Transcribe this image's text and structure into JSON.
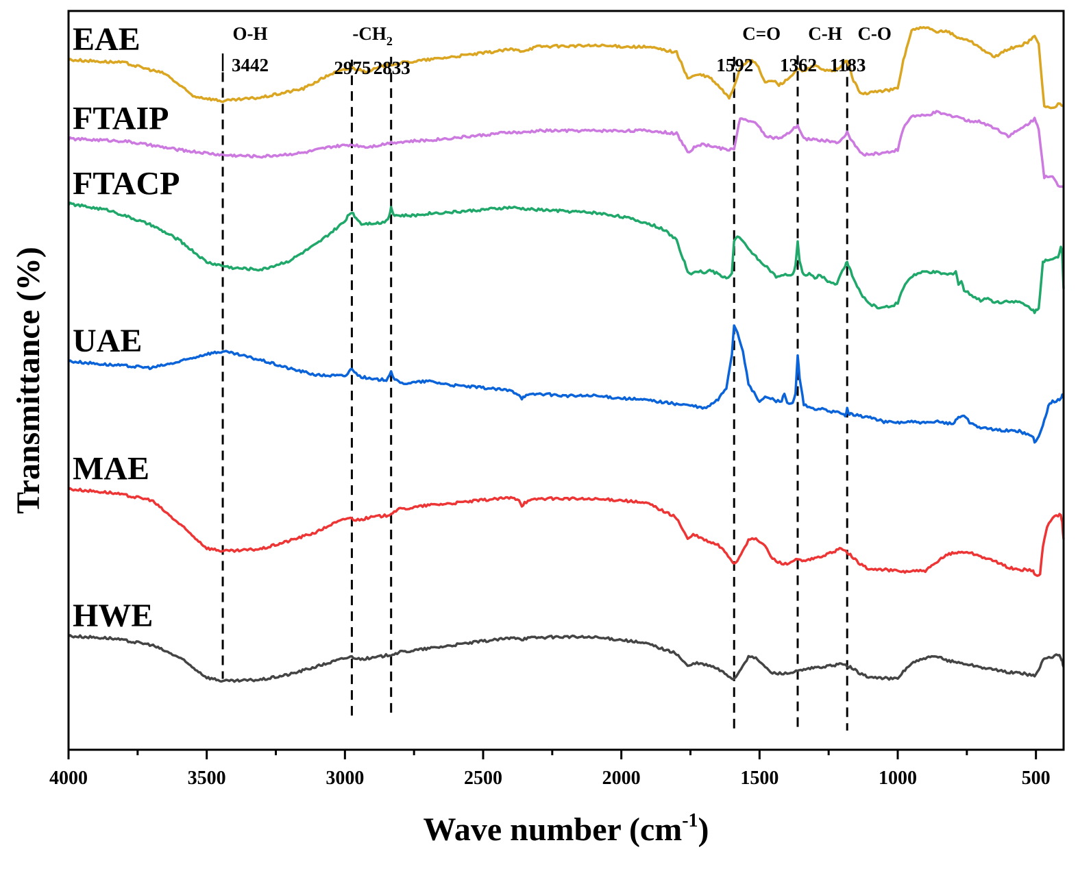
{
  "chart_data": {
    "type": "line",
    "title": "",
    "xlabel_main": "Wave number (cm",
    "xlabel_sup": "-1",
    "xlabel_close": ")",
    "ylabel": "Transmittance (%)",
    "xlim": [
      4000,
      400
    ],
    "x_reversed": true,
    "ylim": [
      0,
      100
    ],
    "grid": false,
    "x_ticks": [
      4000,
      3500,
      3000,
      2500,
      2000,
      1500,
      1000,
      500
    ],
    "x_tick_labels": [
      "4000",
      "3500",
      "3000",
      "2500",
      "2000",
      "1500",
      "1000",
      "500"
    ],
    "y_ticks_shown": false,
    "series": [
      {
        "name": "EAE",
        "color": "#DAA520",
        "label_text": "EAE",
        "x": [
          4000,
          3800,
          3650,
          3550,
          3442,
          3300,
          3150,
          3050,
          2975,
          2920,
          2870,
          2833,
          2700,
          2500,
          2400,
          2360,
          2300,
          2100,
          1900,
          1800,
          1760,
          1720,
          1680,
          1640,
          1610,
          1592,
          1570,
          1540,
          1510,
          1480,
          1450,
          1430,
          1400,
          1362,
          1340,
          1300,
          1250,
          1210,
          1183,
          1160,
          1130,
          1100,
          1050,
          1000,
          980,
          950,
          900,
          860,
          820,
          780,
          750,
          700,
          650,
          600,
          560,
          530,
          505,
          490,
          470,
          440,
          420,
          400
        ],
        "y": [
          93.4,
          93,
          91.5,
          88.5,
          87.8,
          88.3,
          89.5,
          91.5,
          92.3,
          91.8,
          92.4,
          92.8,
          93.4,
          94.3,
          94.8,
          94.6,
          95.2,
          95.3,
          95.1,
          94.4,
          90.9,
          91.4,
          91,
          89.5,
          88.2,
          89.8,
          92.3,
          93.4,
          92.8,
          90.3,
          90.6,
          90,
          90.7,
          92.1,
          91.8,
          92.6,
          91.8,
          92.2,
          93.4,
          90.5,
          88.7,
          89,
          89.2,
          89.5,
          93.3,
          97.4,
          97.8,
          97.1,
          97.3,
          96.3,
          96.2,
          95,
          93.7,
          94.9,
          95.2,
          95.8,
          96.6,
          95.5,
          87.1,
          86.8,
          87.4,
          87.1
        ]
      },
      {
        "name": "FTAIP",
        "color": "#CC79E0",
        "label_text": "FTAIP",
        "x": [
          4000,
          3800,
          3600,
          3442,
          3300,
          3150,
          3050,
          2975,
          2920,
          2870,
          2833,
          2700,
          2500,
          2400,
          2360,
          2300,
          2100,
          1900,
          1800,
          1760,
          1720,
          1680,
          1640,
          1610,
          1592,
          1570,
          1540,
          1510,
          1480,
          1450,
          1420,
          1400,
          1362,
          1340,
          1300,
          1250,
          1210,
          1183,
          1160,
          1130,
          1100,
          1050,
          1000,
          980,
          950,
          900,
          860,
          820,
          780,
          750,
          700,
          650,
          600,
          560,
          530,
          505,
          490,
          470,
          440,
          420,
          400
        ],
        "y": [
          82.7,
          82.4,
          81.2,
          80.5,
          80.3,
          80.8,
          81.6,
          81.9,
          81.6,
          81.9,
          82.2,
          82.5,
          83.2,
          83.6,
          83.5,
          83.8,
          83.8,
          83.8,
          83.4,
          80.9,
          81.9,
          81.8,
          81.4,
          81.2,
          81.4,
          85.6,
          85,
          84.8,
          83.2,
          82.8,
          82.8,
          83.3,
          84.5,
          82.7,
          82.6,
          82.4,
          82.2,
          83.5,
          82.1,
          80.6,
          80.6,
          80.8,
          81.2,
          84.1,
          85.8,
          85.8,
          86.3,
          85.9,
          85.7,
          85.1,
          85,
          84.2,
          83.1,
          83.9,
          84.7,
          85.4,
          84.1,
          77.5,
          77.5,
          76.4,
          76.2
        ]
      },
      {
        "name": "FTACP",
        "color": "#20A76A",
        "label_text": "FTACP",
        "x": [
          4000,
          3850,
          3700,
          3600,
          3500,
          3442,
          3400,
          3300,
          3200,
          3100,
          3050,
          3000,
          2990,
          2975,
          2960,
          2940,
          2900,
          2870,
          2850,
          2840,
          2833,
          2825,
          2810,
          2750,
          2700,
          2600,
          2500,
          2400,
          2350,
          2300,
          2200,
          2100,
          2000,
          1900,
          1850,
          1800,
          1760,
          1740,
          1720,
          1700,
          1680,
          1650,
          1620,
          1600,
          1592,
          1580,
          1560,
          1540,
          1520,
          1500,
          1480,
          1460,
          1440,
          1420,
          1400,
          1380,
          1370,
          1362,
          1355,
          1340,
          1320,
          1300,
          1280,
          1260,
          1240,
          1220,
          1200,
          1190,
          1183,
          1175,
          1160,
          1140,
          1120,
          1100,
          1080,
          1060,
          1040,
          1020,
          1000,
          980,
          960,
          940,
          900,
          860,
          820,
          800,
          790,
          780,
          770,
          760,
          740,
          720,
          700,
          680,
          650,
          620,
          600,
          580,
          560,
          540,
          520,
          505,
          490,
          475,
          460,
          440,
          420,
          410,
          405,
          400
        ],
        "y": [
          73.9,
          73,
          71,
          69,
          66,
          65.5,
          65.2,
          65,
          66.2,
          68.5,
          70,
          71.5,
          72.3,
          72.8,
          72,
          71.2,
          71.3,
          71.3,
          71.6,
          72.3,
          73.5,
          72.5,
          72.3,
          72.3,
          72.6,
          72.8,
          73.1,
          73.4,
          73.2,
          73.1,
          72.9,
          72.7,
          72.2,
          71.2,
          70.5,
          69,
          64.7,
          64.4,
          64.8,
          64.6,
          64.9,
          64.4,
          63.8,
          64.5,
          69,
          69.5,
          68.8,
          67.7,
          67.1,
          66.2,
          65.6,
          64.8,
          64,
          64.1,
          64.3,
          64.2,
          65.6,
          68.8,
          66,
          64.2,
          64.4,
          63.9,
          64.3,
          63.6,
          63.2,
          63.1,
          64.8,
          65.5,
          66,
          65.3,
          63.7,
          62.2,
          61.1,
          60.3,
          60,
          59.8,
          60,
          60.1,
          60.5,
          62.5,
          63.7,
          64.3,
          64.7,
          64.6,
          64.3,
          64.5,
          64.8,
          63,
          63.4,
          62.2,
          61.7,
          61.2,
          60.8,
          61.2,
          60.6,
          60.6,
          60.8,
          60.6,
          60.6,
          60.2,
          59.8,
          59.3,
          59.7,
          66.1,
          66.2,
          66.3,
          66.7,
          68.1,
          67.3,
          62.4
        ]
      },
      {
        "name": "UAE",
        "color": "#0A63D8",
        "label_text": "UAE",
        "x": [
          4000,
          3850,
          3700,
          3600,
          3500,
          3442,
          3400,
          3300,
          3200,
          3100,
          3000,
          2990,
          2975,
          2960,
          2940,
          2900,
          2860,
          2850,
          2833,
          2820,
          2800,
          2750,
          2700,
          2600,
          2500,
          2400,
          2370,
          2360,
          2350,
          2300,
          2200,
          2100,
          2000,
          1900,
          1800,
          1750,
          1700,
          1680,
          1650,
          1620,
          1600,
          1592,
          1580,
          1560,
          1540,
          1520,
          1500,
          1480,
          1460,
          1440,
          1420,
          1410,
          1400,
          1380,
          1370,
          1362,
          1355,
          1340,
          1320,
          1300,
          1280,
          1260,
          1240,
          1220,
          1200,
          1190,
          1183,
          1175,
          1160,
          1140,
          1100,
          1050,
          1000,
          950,
          900,
          850,
          800,
          790,
          780,
          770,
          760,
          740,
          700,
          650,
          600,
          560,
          530,
          510,
          505,
          495,
          485,
          475,
          465,
          455,
          440,
          420,
          410,
          405,
          400
        ],
        "y": [
          52.6,
          52.1,
          51.7,
          52.5,
          53.6,
          53.9,
          53.6,
          52.7,
          51.6,
          50.7,
          50.6,
          50.9,
          51.7,
          50.9,
          50.5,
          50.1,
          50.1,
          50.1,
          51.2,
          50.1,
          49.6,
          49.7,
          49.9,
          49.3,
          49,
          48.6,
          48.1,
          47.6,
          47.9,
          48.2,
          47.9,
          47.9,
          47.6,
          47.3,
          46.8,
          46.6,
          46.2,
          46.6,
          47.4,
          49,
          53.6,
          57.5,
          56.5,
          54,
          49.4,
          48.3,
          47.1,
          47.7,
          47.6,
          47.2,
          47.3,
          48.2,
          47,
          46.8,
          48.1,
          53.4,
          50.3,
          46.7,
          46.3,
          46.1,
          46.2,
          45.9,
          45.8,
          45.7,
          45.4,
          45.3,
          46.1,
          45.4,
          45.4,
          45.2,
          45,
          44.4,
          44.3,
          44.4,
          44.2,
          44.4,
          44.1,
          44.6,
          45,
          45.2,
          45.3,
          44.3,
          43.6,
          43.3,
          43.2,
          43.1,
          42.7,
          42.3,
          41.7,
          42.1,
          42.8,
          43.9,
          45.2,
          46.5,
          47.1,
          47.3,
          47.6,
          48.1,
          47.9
        ]
      },
      {
        "name": "MAE",
        "color": "#EE3535",
        "label_text": "MAE",
        "x": [
          4000,
          3850,
          3700,
          3600,
          3500,
          3442,
          3400,
          3300,
          3200,
          3100,
          3050,
          3000,
          2990,
          2975,
          2960,
          2940,
          2900,
          2850,
          2833,
          2810,
          2750,
          2700,
          2600,
          2500,
          2400,
          2370,
          2360,
          2350,
          2300,
          2200,
          2100,
          2000,
          1900,
          1800,
          1760,
          1740,
          1720,
          1700,
          1680,
          1650,
          1620,
          1600,
          1592,
          1580,
          1560,
          1540,
          1520,
          1500,
          1480,
          1460,
          1440,
          1420,
          1400,
          1380,
          1362,
          1340,
          1300,
          1250,
          1210,
          1183,
          1160,
          1130,
          1100,
          1050,
          1000,
          980,
          950,
          900,
          860,
          820,
          780,
          750,
          700,
          650,
          600,
          560,
          530,
          510,
          505,
          495,
          485,
          475,
          460,
          440,
          420,
          410,
          405,
          400
        ],
        "y": [
          35.3,
          34.8,
          33.8,
          30.6,
          27.3,
          26.9,
          26.9,
          27.2,
          28.3,
          29.5,
          30.5,
          31.2,
          31.4,
          31.3,
          31.1,
          31.2,
          31.5,
          31.7,
          32,
          32.5,
          32.8,
          33.1,
          33.4,
          33.8,
          34.1,
          33.9,
          33,
          33.5,
          34,
          34,
          33.9,
          33.8,
          33.3,
          31.4,
          28.5,
          29.1,
          28.8,
          28.4,
          28.1,
          27.7,
          26.6,
          25.6,
          25.2,
          25.6,
          27.1,
          28.3,
          28.6,
          28.2,
          27.6,
          26.2,
          25.5,
          25.3,
          25.1,
          25.6,
          25.7,
          25.5,
          25.9,
          26.5,
          27.2,
          26.8,
          25.9,
          25,
          24.4,
          24.4,
          24.2,
          24.1,
          24.2,
          24.2,
          25.3,
          26.5,
          26.7,
          26.8,
          26.2,
          25.5,
          24.7,
          24.3,
          24.4,
          24.2,
          23.7,
          23.5,
          23.9,
          27.5,
          30.1,
          31.5,
          31.6,
          31.9,
          30.7,
          28.5
        ]
      },
      {
        "name": "HWE",
        "color": "#444444",
        "label_text": "HWE",
        "x": [
          4000,
          3850,
          3700,
          3600,
          3500,
          3442,
          3400,
          3300,
          3200,
          3100,
          3000,
          2975,
          2950,
          2900,
          2833,
          2800,
          2700,
          2600,
          2500,
          2400,
          2370,
          2360,
          2350,
          2300,
          2200,
          2100,
          2000,
          1900,
          1800,
          1760,
          1740,
          1720,
          1700,
          1680,
          1650,
          1620,
          1600,
          1592,
          1580,
          1560,
          1540,
          1520,
          1500,
          1480,
          1460,
          1440,
          1420,
          1400,
          1380,
          1362,
          1340,
          1300,
          1250,
          1210,
          1183,
          1160,
          1130,
          1100,
          1050,
          1000,
          980,
          950,
          900,
          860,
          820,
          780,
          750,
          700,
          650,
          600,
          560,
          530,
          510,
          505,
          495,
          485,
          475,
          460,
          440,
          420,
          410,
          405,
          400
        ],
        "y": [
          15.4,
          15.1,
          14.2,
          12.5,
          9.8,
          9.3,
          9.3,
          9.5,
          10.2,
          11.3,
          12.4,
          12.6,
          12.3,
          12.4,
          12.9,
          13.2,
          13.7,
          14.2,
          14.7,
          15.1,
          15.2,
          14.9,
          15.1,
          15.2,
          15.3,
          15.2,
          14.9,
          14.3,
          13,
          11.3,
          11.6,
          11.7,
          11.5,
          11.4,
          10.9,
          10.2,
          9.7,
          9.6,
          10.2,
          11.5,
          12.5,
          12.5,
          12,
          11.2,
          10.5,
          10.3,
          10.4,
          10.3,
          10.5,
          10.6,
          10.8,
          11.1,
          11.3,
          11.6,
          11.4,
          10.9,
          10.2,
          9.8,
          9.7,
          9.6,
          10.6,
          11.7,
          12.4,
          12.6,
          12.1,
          11.8,
          11.6,
          11.2,
          10.8,
          10.5,
          10.4,
          10.2,
          10.1,
          9.9,
          10.5,
          11.3,
          12.2,
          12.4,
          12.6,
          12.8,
          12.5,
          12,
          11.2
        ]
      }
    ],
    "annotations": [
      {
        "x": 3442,
        "label_top": "O-H",
        "label_value": "3442",
        "line_top": 91.7,
        "line_bottom": 9.6,
        "lead_tick": true
      },
      {
        "x": 2975,
        "label_value": "2975",
        "line_top": 93.4,
        "line_bottom": 4.3
      },
      {
        "x": 2833,
        "label_value": "2833",
        "line_top": 93.8,
        "line_bottom": 4.8
      },
      {
        "x": 1592,
        "label_top": "C=O",
        "label_value": "1592",
        "line_top": 93.8,
        "line_bottom": 2.6
      },
      {
        "x": 1362,
        "label_top": "C-H",
        "label_value": "1362",
        "line_top": 94.0,
        "line_bottom": 2.6
      },
      {
        "x": 1183,
        "label_top": "C-O",
        "label_value": "1183",
        "line_top": 93.2,
        "line_bottom": 2.6
      }
    ],
    "group_label": {
      "main": "-CH",
      "sub": "2",
      "x": 2900
    }
  }
}
